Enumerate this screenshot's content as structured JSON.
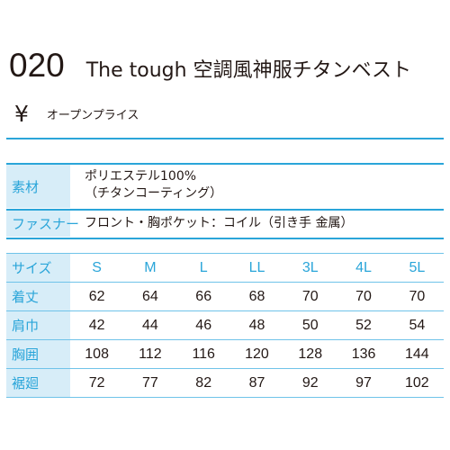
{
  "product": {
    "code": "020",
    "name": "The tough 空調風神服チタンベスト",
    "price_symbol": "¥",
    "price": "オープンプライス"
  },
  "specs": [
    {
      "label": "素材",
      "lines": [
        "ポリエステル100%",
        "（チタンコーティング）"
      ]
    },
    {
      "label": "ファスナー",
      "lines": [
        "フロント・胸ポケット：コイル（引き手 金属）"
      ]
    }
  ],
  "size_table": {
    "header_label": "サイズ",
    "sizes": [
      "S",
      "M",
      "L",
      "LL",
      "3L",
      "4L",
      "5L"
    ],
    "rows": [
      {
        "label": "着丈",
        "values": [
          "62",
          "64",
          "66",
          "68",
          "70",
          "70",
          "70"
        ]
      },
      {
        "label": "肩巾",
        "values": [
          "42",
          "44",
          "46",
          "48",
          "50",
          "52",
          "54"
        ]
      },
      {
        "label": "胸囲",
        "values": [
          "108",
          "112",
          "116",
          "120",
          "128",
          "136",
          "144"
        ]
      },
      {
        "label": "裾廻",
        "values": [
          "72",
          "77",
          "82",
          "87",
          "92",
          "97",
          "102"
        ]
      }
    ]
  },
  "colors": {
    "accent": "#2aa5d9",
    "label_bg": "#d7edf8",
    "text": "#231815"
  }
}
